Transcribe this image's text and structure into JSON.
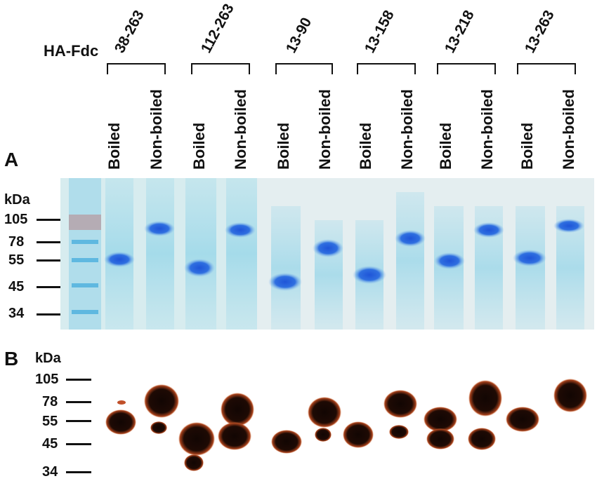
{
  "header": {
    "construct_prefix": "HA-Fdc",
    "constructs": [
      "38-263",
      "112-263",
      "13-90",
      "13-158",
      "13-218",
      "13-263"
    ],
    "conditions": [
      "Boiled",
      "Non-boiled"
    ]
  },
  "panel_a": {
    "letter": "A",
    "unit": "kDa",
    "markers": [
      "105",
      "78",
      "55",
      "45",
      "34"
    ]
  },
  "panel_b": {
    "letter": "B",
    "unit": "kDa",
    "markers": [
      "105",
      "78",
      "55",
      "45",
      "34"
    ]
  },
  "colors": {
    "gel_background": "#cfe8ee",
    "coomassie_band": "#2f6fe0",
    "western_band": "#1a0a05",
    "western_halo": "#c0502a"
  }
}
